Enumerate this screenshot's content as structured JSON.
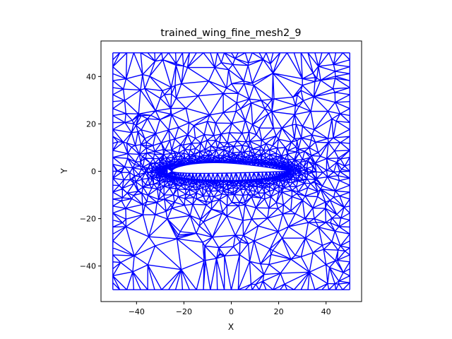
{
  "chart_data": {
    "type": "scatter",
    "subtype": "triangular-mesh",
    "title": "trained_wing_fine_mesh2_9",
    "xlabel": "X",
    "ylabel": "Y",
    "xlim": [
      -55,
      55
    ],
    "ylim": [
      -55,
      55
    ],
    "xticks": [
      -40,
      -20,
      0,
      20,
      40
    ],
    "yticks": [
      -40,
      -20,
      0,
      20,
      40
    ],
    "xtick_labels": [
      "−40",
      "−20",
      "0",
      "20",
      "40"
    ],
    "ytick_labels": [
      "−40",
      "−20",
      "0",
      "20",
      "40"
    ],
    "grid": false,
    "legend": "none",
    "domain_box": {
      "x": [
        -50,
        50
      ],
      "y": [
        -50,
        50
      ]
    },
    "airfoil": {
      "leading_edge": [
        -25,
        0
      ],
      "trailing_edge": [
        25,
        0
      ],
      "chord": 50,
      "max_thickness": 6,
      "max_thickness_location": 0.3
    },
    "series": [
      {
        "color": "#0000ff",
        "description_points": "mesh edges"
      }
    ]
  }
}
